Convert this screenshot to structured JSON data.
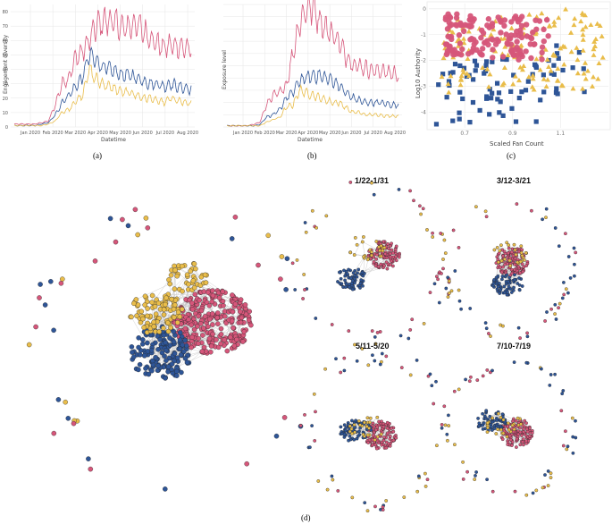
{
  "colors": {
    "pink": "#d6567a",
    "blue": "#2e5597",
    "yellow": "#e9bd4a",
    "grid": "#e6e6e6",
    "edge": "#bdbdbd"
  },
  "chart_data": [
    {
      "id": "a",
      "type": "line",
      "caption": "(a)",
      "xlabel": "Datetime",
      "ylabel": "Engagement diversity",
      "x_ticks": [
        "Jan 2020",
        "Feb 2020",
        "Mar 2020",
        "Apr 2020",
        "May 2020",
        "Jun 2020",
        "Jul 2020",
        "Aug 2020"
      ],
      "y_ticks": [
        "0",
        "10",
        "20",
        "30",
        "40",
        "50",
        "60",
        "70",
        "80"
      ],
      "ylim": [
        0,
        85
      ],
      "series": [
        {
          "name": "pink",
          "color": "#d6567a",
          "values": [
            2,
            2,
            2,
            2,
            3,
            4,
            15,
            30,
            34,
            48,
            52,
            60,
            70,
            73,
            74,
            72,
            68,
            70,
            72,
            66,
            62,
            58,
            55,
            57,
            56,
            55,
            54
          ]
        },
        {
          "name": "blue",
          "color": "#2e5597",
          "values": [
            1,
            1,
            1,
            1,
            2,
            3,
            8,
            17,
            22,
            28,
            34,
            50,
            46,
            42,
            40,
            38,
            36,
            36,
            34,
            32,
            30,
            30,
            28,
            30,
            28,
            27,
            26
          ]
        },
        {
          "name": "yellow",
          "color": "#e9bd4a",
          "values": [
            1,
            1,
            1,
            1,
            1,
            2,
            4,
            10,
            12,
            18,
            22,
            40,
            33,
            30,
            28,
            26,
            24,
            24,
            22,
            20,
            20,
            18,
            17,
            20,
            18,
            17,
            16
          ]
        }
      ]
    },
    {
      "id": "b",
      "type": "line",
      "caption": "(b)",
      "xlabel": "Datetime",
      "ylabel": "Exposure level",
      "x_ticks": [
        "Jan 2020",
        "Feb 2020",
        "Mar 2020",
        "Apr 2020",
        "May 2020",
        "Jun 2020",
        "Jul 2020",
        "Aug 2020"
      ],
      "y_ticks": [],
      "ylim": [
        0,
        100
      ],
      "series": [
        {
          "name": "pink",
          "color": "#d6567a",
          "values": [
            1,
            1,
            1,
            1,
            2,
            4,
            18,
            26,
            28,
            34,
            60,
            85,
            96,
            98,
            88,
            80,
            76,
            70,
            58,
            52,
            50,
            48,
            46,
            46,
            45,
            44,
            43
          ]
        },
        {
          "name": "blue",
          "color": "#2e5597",
          "values": [
            1,
            1,
            1,
            1,
            1,
            2,
            8,
            10,
            14,
            24,
            28,
            38,
            40,
            42,
            42,
            40,
            38,
            34,
            28,
            24,
            22,
            20,
            20,
            20,
            19,
            18,
            18
          ]
        },
        {
          "name": "yellow",
          "color": "#e9bd4a",
          "values": [
            1,
            1,
            1,
            1,
            1,
            1,
            4,
            6,
            8,
            16,
            18,
            30,
            28,
            26,
            24,
            22,
            20,
            20,
            16,
            12,
            12,
            10,
            10,
            10,
            9,
            9,
            9
          ]
        }
      ]
    },
    {
      "id": "c",
      "type": "scatter",
      "caption": "(c)",
      "xlabel": "Scaled Fan Count",
      "ylabel": "Log10 Authority",
      "x_ticks": [
        "0.7",
        "0.9",
        "1.1"
      ],
      "y_ticks": [
        "0",
        "-1",
        "-2",
        "-3",
        "-4"
      ],
      "xlim": [
        0.55,
        1.3
      ],
      "ylim": [
        -4.6,
        0.2
      ],
      "series": [
        {
          "name": "pink",
          "marker": "circle",
          "color": "#d6567a",
          "x_range": [
            0.62,
            1.05
          ],
          "y_range": [
            -2.2,
            -0.1
          ],
          "count": 150
        },
        {
          "name": "yellow",
          "marker": "triangle",
          "color": "#e9bd4a",
          "x_range": [
            0.6,
            1.28
          ],
          "y_range": [
            -3.6,
            -0.5
          ],
          "count": 150
        },
        {
          "name": "blue",
          "marker": "square",
          "color": "#2e5597",
          "x_range": [
            0.58,
            1.2
          ],
          "y_range": [
            -4.5,
            -1.4
          ],
          "count": 75
        }
      ]
    },
    {
      "id": "d",
      "type": "network",
      "caption": "(d)",
      "panels": [
        {
          "title": "",
          "size": "large"
        },
        {
          "title": "1/22-1/31"
        },
        {
          "title": "3/12-3/21"
        },
        {
          "title": "5/11-5/20"
        },
        {
          "title": "7/10-7/19"
        }
      ]
    }
  ]
}
